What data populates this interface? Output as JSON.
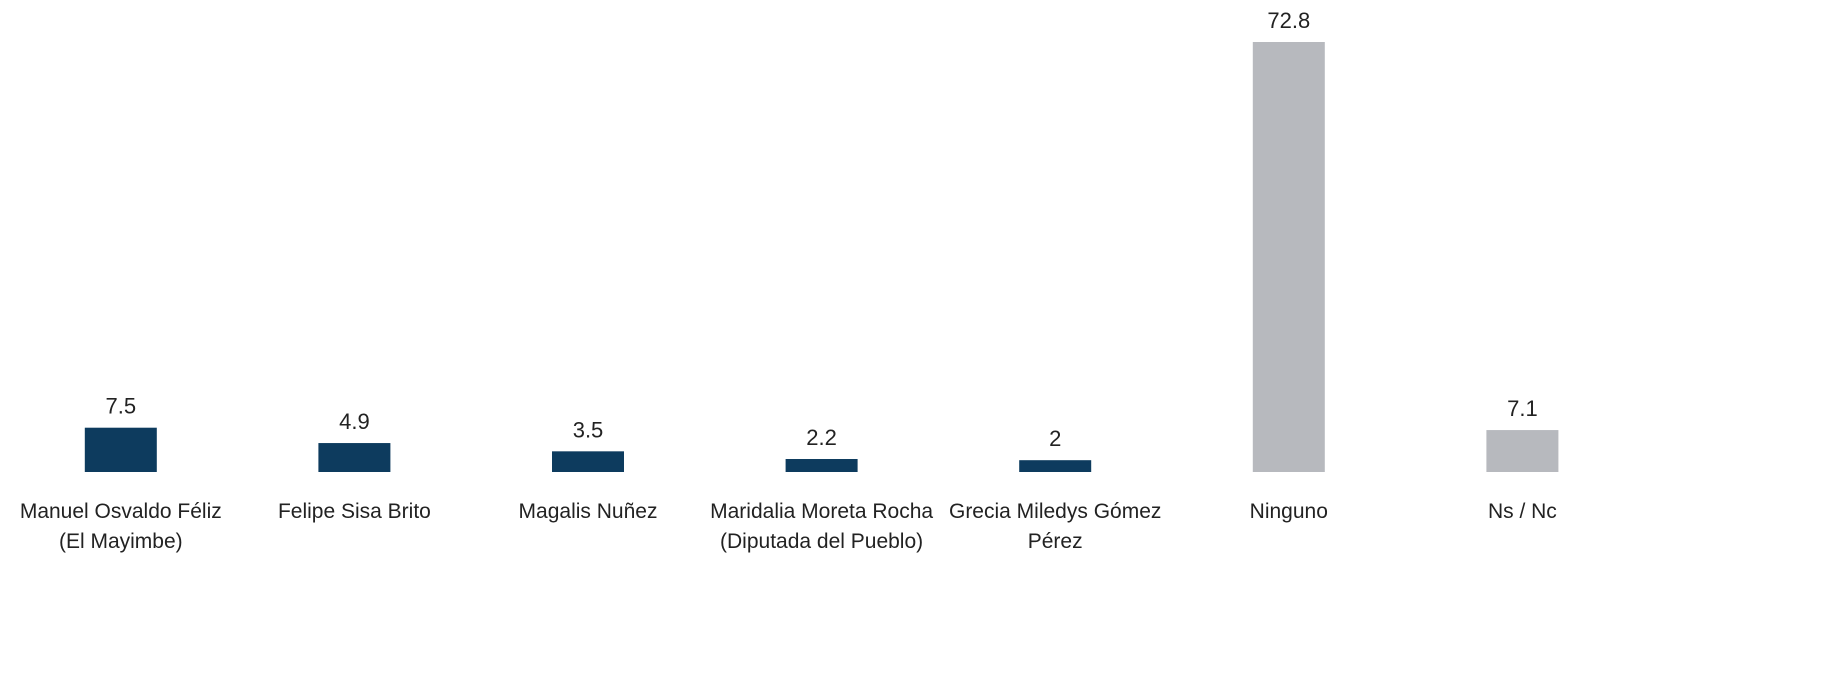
{
  "chart_data": {
    "type": "bar",
    "categories": [
      "Manuel Osvaldo Féliz (El Mayimbe)",
      "Felipe Sisa Brito",
      "Magalis Nuñez",
      "Maridalia Moreta Rocha (Diputada del Pueblo)",
      "Grecia Miledys Gómez Pérez",
      "Ninguno",
      "Ns / Nc"
    ],
    "values": [
      7.5,
      4.9,
      3.5,
      2.2,
      2,
      72.8,
      7.1
    ],
    "colors": [
      "#0d3b5e",
      "#0d3b5e",
      "#0d3b5e",
      "#0d3b5e",
      "#0d3b5e",
      "#b7b9be",
      "#b7b9be"
    ]
  }
}
